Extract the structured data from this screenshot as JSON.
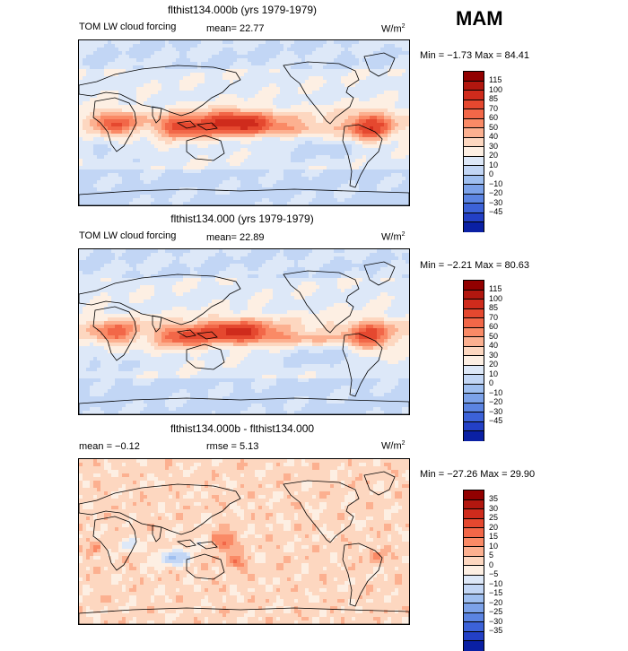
{
  "season": "MAM",
  "panels": [
    {
      "title": "flthist134.000b (yrs 1979-1979)",
      "label": "TOM LW cloud forcing",
      "stat1": "mean=  22.77",
      "stat2": "",
      "units": "W/m",
      "units_sup": "2",
      "minmax": "Min =  −1.73 Max =  84.41",
      "levels": [
        "115",
        "100",
        "85",
        "70",
        "60",
        "50",
        "40",
        "30",
        "20",
        "10",
        "0",
        "−10",
        "−20",
        "−30",
        "−45"
      ],
      "colors": [
        "#920000",
        "#b2170f",
        "#cf2b1c",
        "#e5482f",
        "#f26748",
        "#fa8a66",
        "#fcb090",
        "#fdd7c0",
        "#fdefe3",
        "#dde8f8",
        "#c2d6f5",
        "#9fbff0",
        "#7ca2e9",
        "#5b84e2",
        "#3c62d8",
        "#2340c6",
        "#0a20a4"
      ],
      "field": "base"
    },
    {
      "title": "flthist134.000 (yrs 1979-1979)",
      "label": "TOM LW cloud forcing",
      "stat1": "mean=  22.89",
      "stat2": "",
      "units": "W/m",
      "units_sup": "2",
      "minmax": "Min =  −2.21 Max =  80.63",
      "levels": [
        "115",
        "100",
        "85",
        "70",
        "60",
        "50",
        "40",
        "30",
        "20",
        "10",
        "0",
        "−10",
        "−20",
        "−30",
        "−45"
      ],
      "colors": [
        "#920000",
        "#b2170f",
        "#cf2b1c",
        "#e5482f",
        "#f26748",
        "#fa8a66",
        "#fcb090",
        "#fdd7c0",
        "#fdefe3",
        "#dde8f8",
        "#c2d6f5",
        "#9fbff0",
        "#7ca2e9",
        "#5b84e2",
        "#3c62d8",
        "#2340c6",
        "#0a20a4"
      ],
      "field": "base2"
    },
    {
      "title": "flthist134.000b - flthist134.000",
      "label": "mean =  −0.12",
      "stat1": "rmse =   5.13",
      "stat2": "",
      "units": "W/m",
      "units_sup": "2",
      "minmax": "Min = −27.26 Max =  29.90",
      "levels": [
        "35",
        "30",
        "25",
        "20",
        "15",
        "10",
        "5",
        "0",
        "−5",
        "−10",
        "−15",
        "−20",
        "−25",
        "−30",
        "−35"
      ],
      "colors": [
        "#920000",
        "#b2170f",
        "#cf2b1c",
        "#e5482f",
        "#f26748",
        "#fa8a66",
        "#fcb090",
        "#fdd7c0",
        "#fdefe3",
        "#dde8f8",
        "#c2d6f5",
        "#9fbff0",
        "#7ca2e9",
        "#5b84e2",
        "#3c62d8",
        "#2340c6",
        "#0a20a4"
      ],
      "field": "diff"
    }
  ],
  "chart_data": {
    "type": "heatmap",
    "projection": "cylindrical equidistant, centered on 180",
    "panels": [
      {
        "title": "flthist134.000b (yrs 1979-1979)",
        "variable": "TOM LW cloud forcing",
        "mean": 22.77,
        "min": -1.73,
        "max": 84.41,
        "units": "W/m2",
        "contour_levels": [
          -45,
          -30,
          -20,
          -10,
          0,
          10,
          20,
          30,
          40,
          50,
          60,
          70,
          85,
          100,
          115
        ]
      },
      {
        "title": "flthist134.000 (yrs 1979-1979)",
        "variable": "TOM LW cloud forcing",
        "mean": 22.89,
        "min": -2.21,
        "max": 80.63,
        "units": "W/m2",
        "contour_levels": [
          -45,
          -30,
          -20,
          -10,
          0,
          10,
          20,
          30,
          40,
          50,
          60,
          70,
          85,
          100,
          115
        ]
      },
      {
        "title": "flthist134.000b - flthist134.000",
        "mean": -0.12,
        "rmse": 5.13,
        "min": -27.26,
        "max": 29.9,
        "units": "W/m2",
        "contour_levels": [
          -35,
          -30,
          -25,
          -20,
          -15,
          -10,
          -5,
          0,
          5,
          10,
          15,
          20,
          25,
          30,
          35
        ]
      }
    ]
  }
}
